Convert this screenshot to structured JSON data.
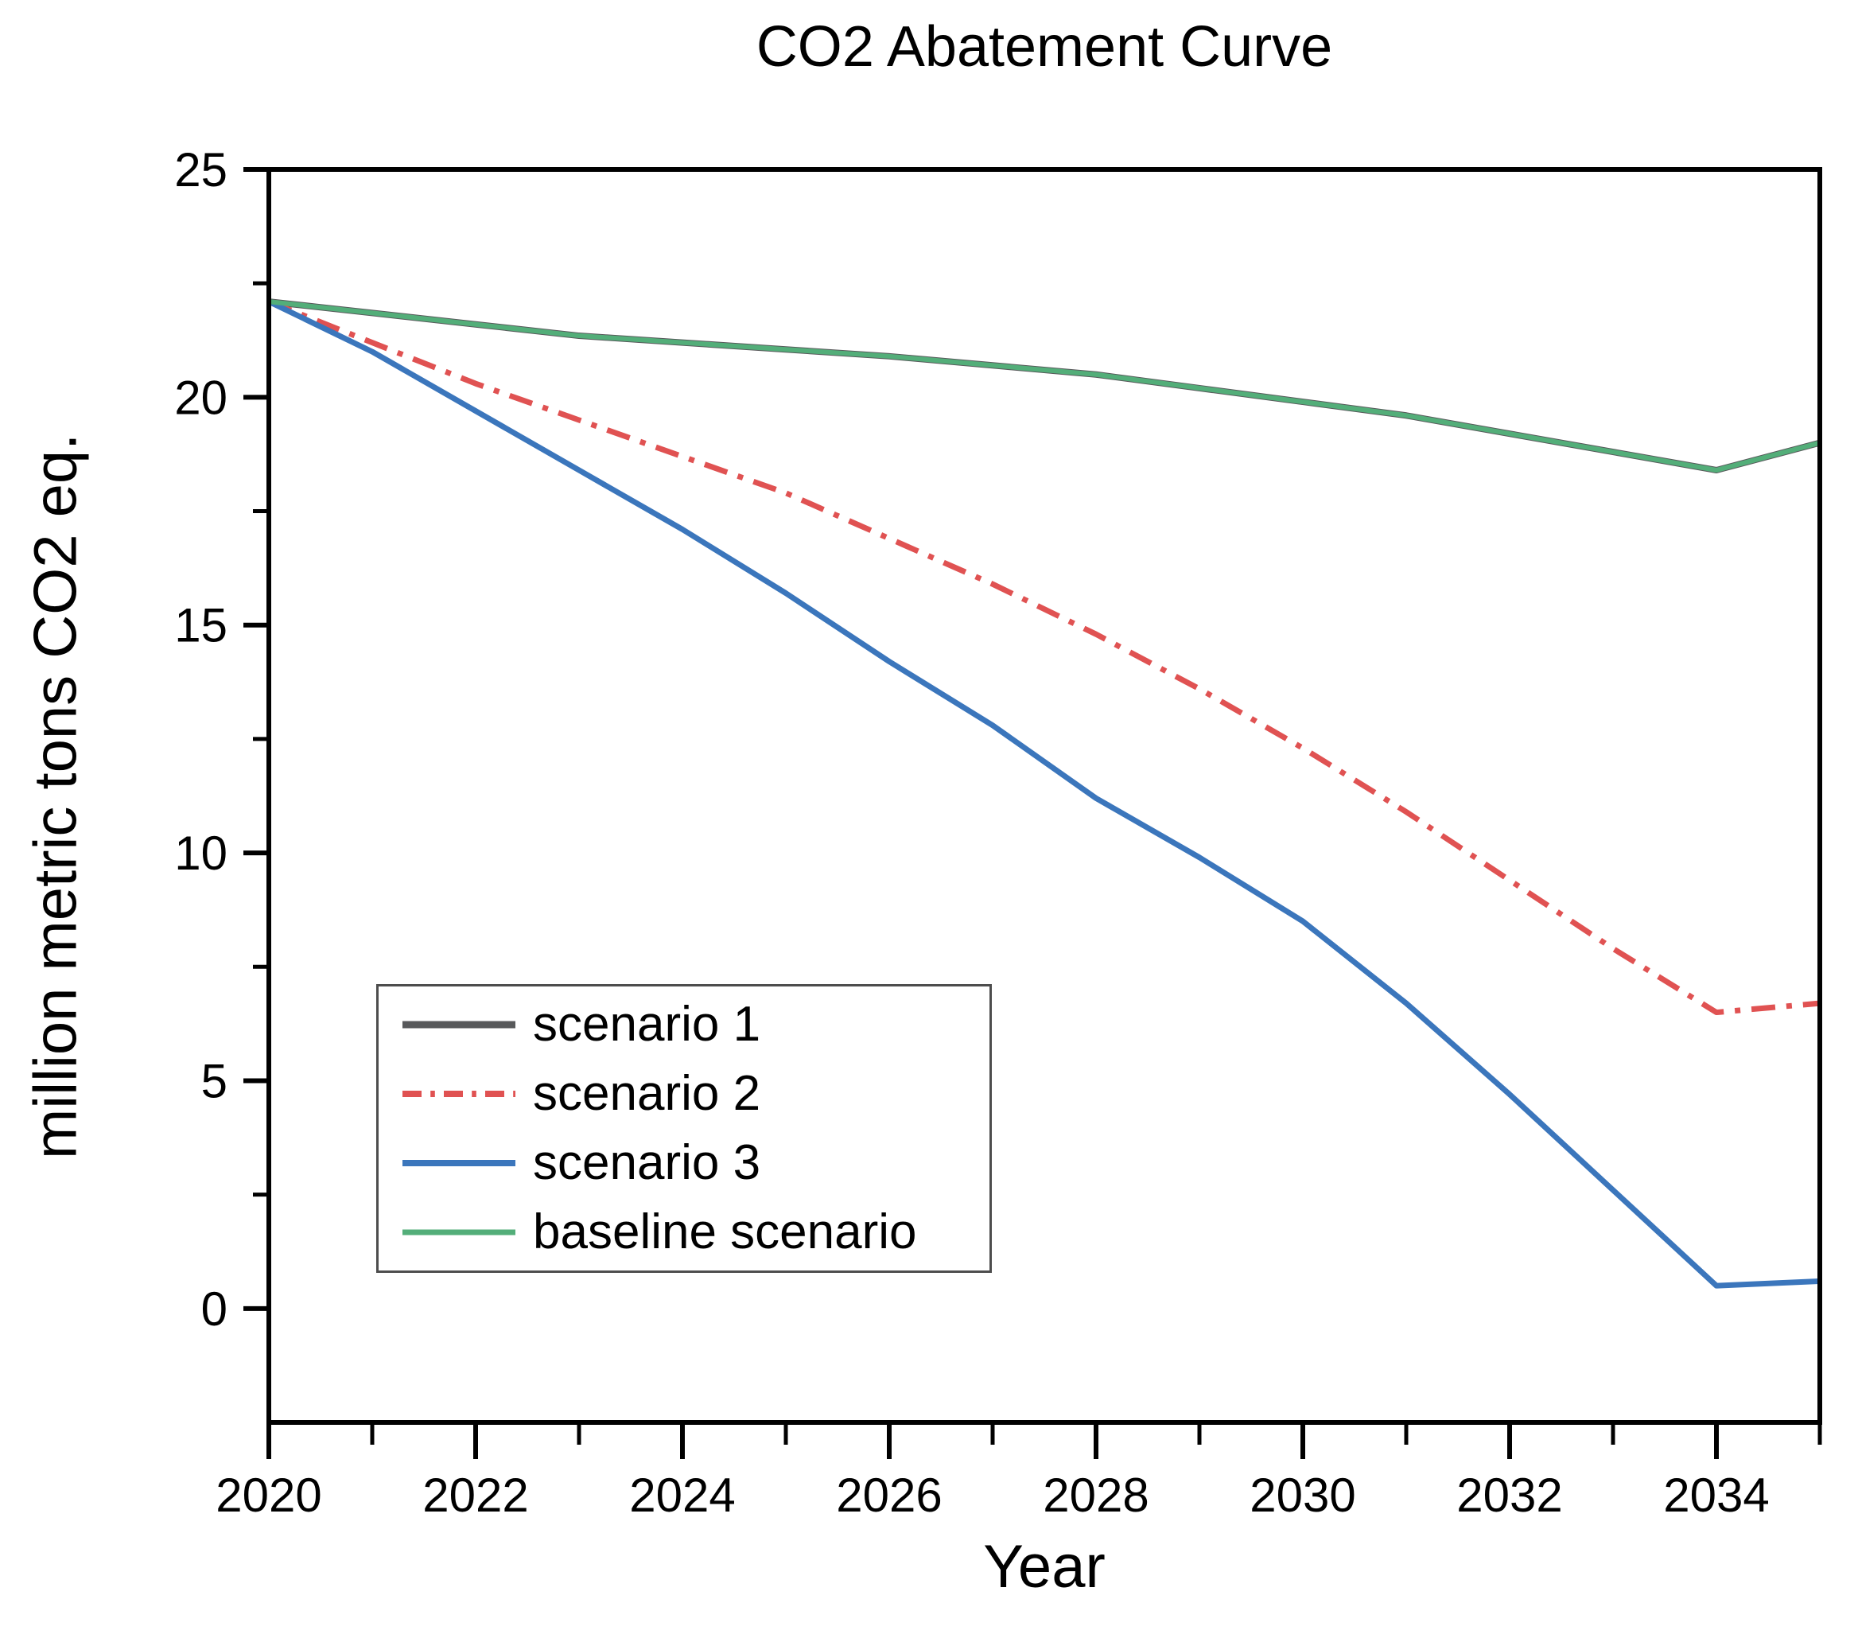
{
  "chart_data": {
    "type": "line",
    "title": "CO2 Abatement Curve",
    "xlabel": "Year",
    "ylabel": "million metric tons CO2 eq.",
    "x_range": [
      2020,
      2035
    ],
    "y_range": [
      -2.5,
      25
    ],
    "x_major_ticks": [
      2020,
      2022,
      2024,
      2026,
      2028,
      2030,
      2032,
      2034
    ],
    "x_minor_ticks": [
      2021,
      2023,
      2025,
      2027,
      2029,
      2031,
      2033,
      2035
    ],
    "y_major_ticks": [
      0,
      5,
      10,
      15,
      20,
      25
    ],
    "y_minor_ticks": [
      2.5,
      7.5,
      12.5,
      17.5,
      22.5
    ],
    "grid": false,
    "legend_position": "inside bottom-left",
    "axis_color": "#000000",
    "x": [
      2020,
      2021,
      2022,
      2023,
      2024,
      2025,
      2026,
      2027,
      2028,
      2029,
      2030,
      2031,
      2032,
      2033,
      2034,
      2035
    ],
    "series": [
      {
        "name": "scenario 1",
        "color": "#58595b",
        "line_style": "solid",
        "width": 8,
        "values": [
          22.1,
          21.85,
          21.6,
          21.35,
          21.2,
          21.05,
          20.9,
          20.7,
          20.5,
          20.2,
          19.9,
          19.6,
          19.2,
          18.8,
          18.4,
          19.0
        ]
      },
      {
        "name": "scenario 2",
        "color": "#e05252",
        "line_style": "dash-dot",
        "width": 7,
        "dash": [
          30,
          14,
          7,
          14
        ],
        "values": [
          22.1,
          21.2,
          20.3,
          19.5,
          18.7,
          17.9,
          16.9,
          15.9,
          14.8,
          13.6,
          12.3,
          10.9,
          9.4,
          7.9,
          6.5,
          6.7
        ]
      },
      {
        "name": "scenario 3",
        "color": "#3b76bc",
        "line_style": "solid",
        "width": 7,
        "values": [
          22.1,
          21.0,
          19.7,
          18.4,
          17.1,
          15.7,
          14.2,
          12.8,
          11.2,
          9.9,
          8.5,
          6.7,
          4.7,
          2.6,
          0.5,
          0.6
        ]
      },
      {
        "name": "baseline scenario",
        "color": "#53ae79",
        "line_style": "solid",
        "width": 6,
        "values": [
          22.1,
          21.85,
          21.6,
          21.35,
          21.2,
          21.05,
          20.9,
          20.7,
          20.5,
          20.2,
          19.9,
          19.6,
          19.2,
          18.8,
          18.4,
          19.0
        ]
      }
    ]
  }
}
